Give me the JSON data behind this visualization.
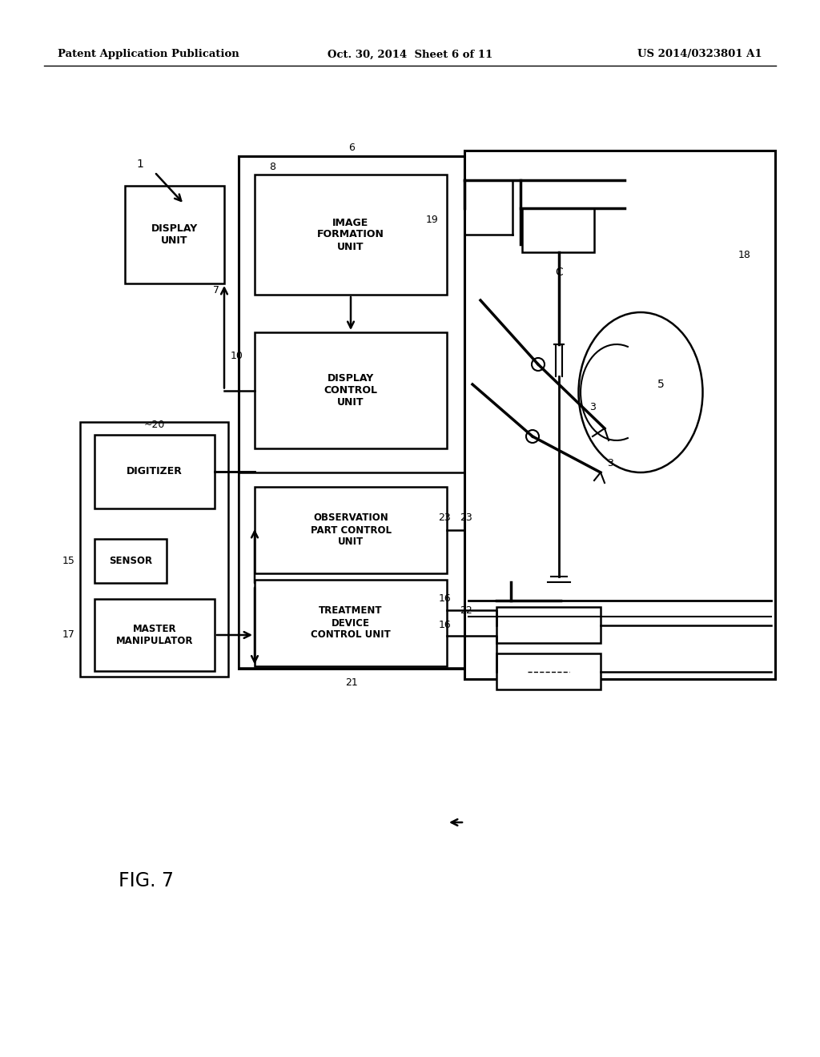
{
  "bg_color": "#ffffff",
  "line_color": "#000000",
  "header_left": "Patent Application Publication",
  "header_center": "Oct. 30, 2014  Sheet 6 of 11",
  "header_right": "US 2014/0323801 A1",
  "fig_label": "FIG. 7"
}
